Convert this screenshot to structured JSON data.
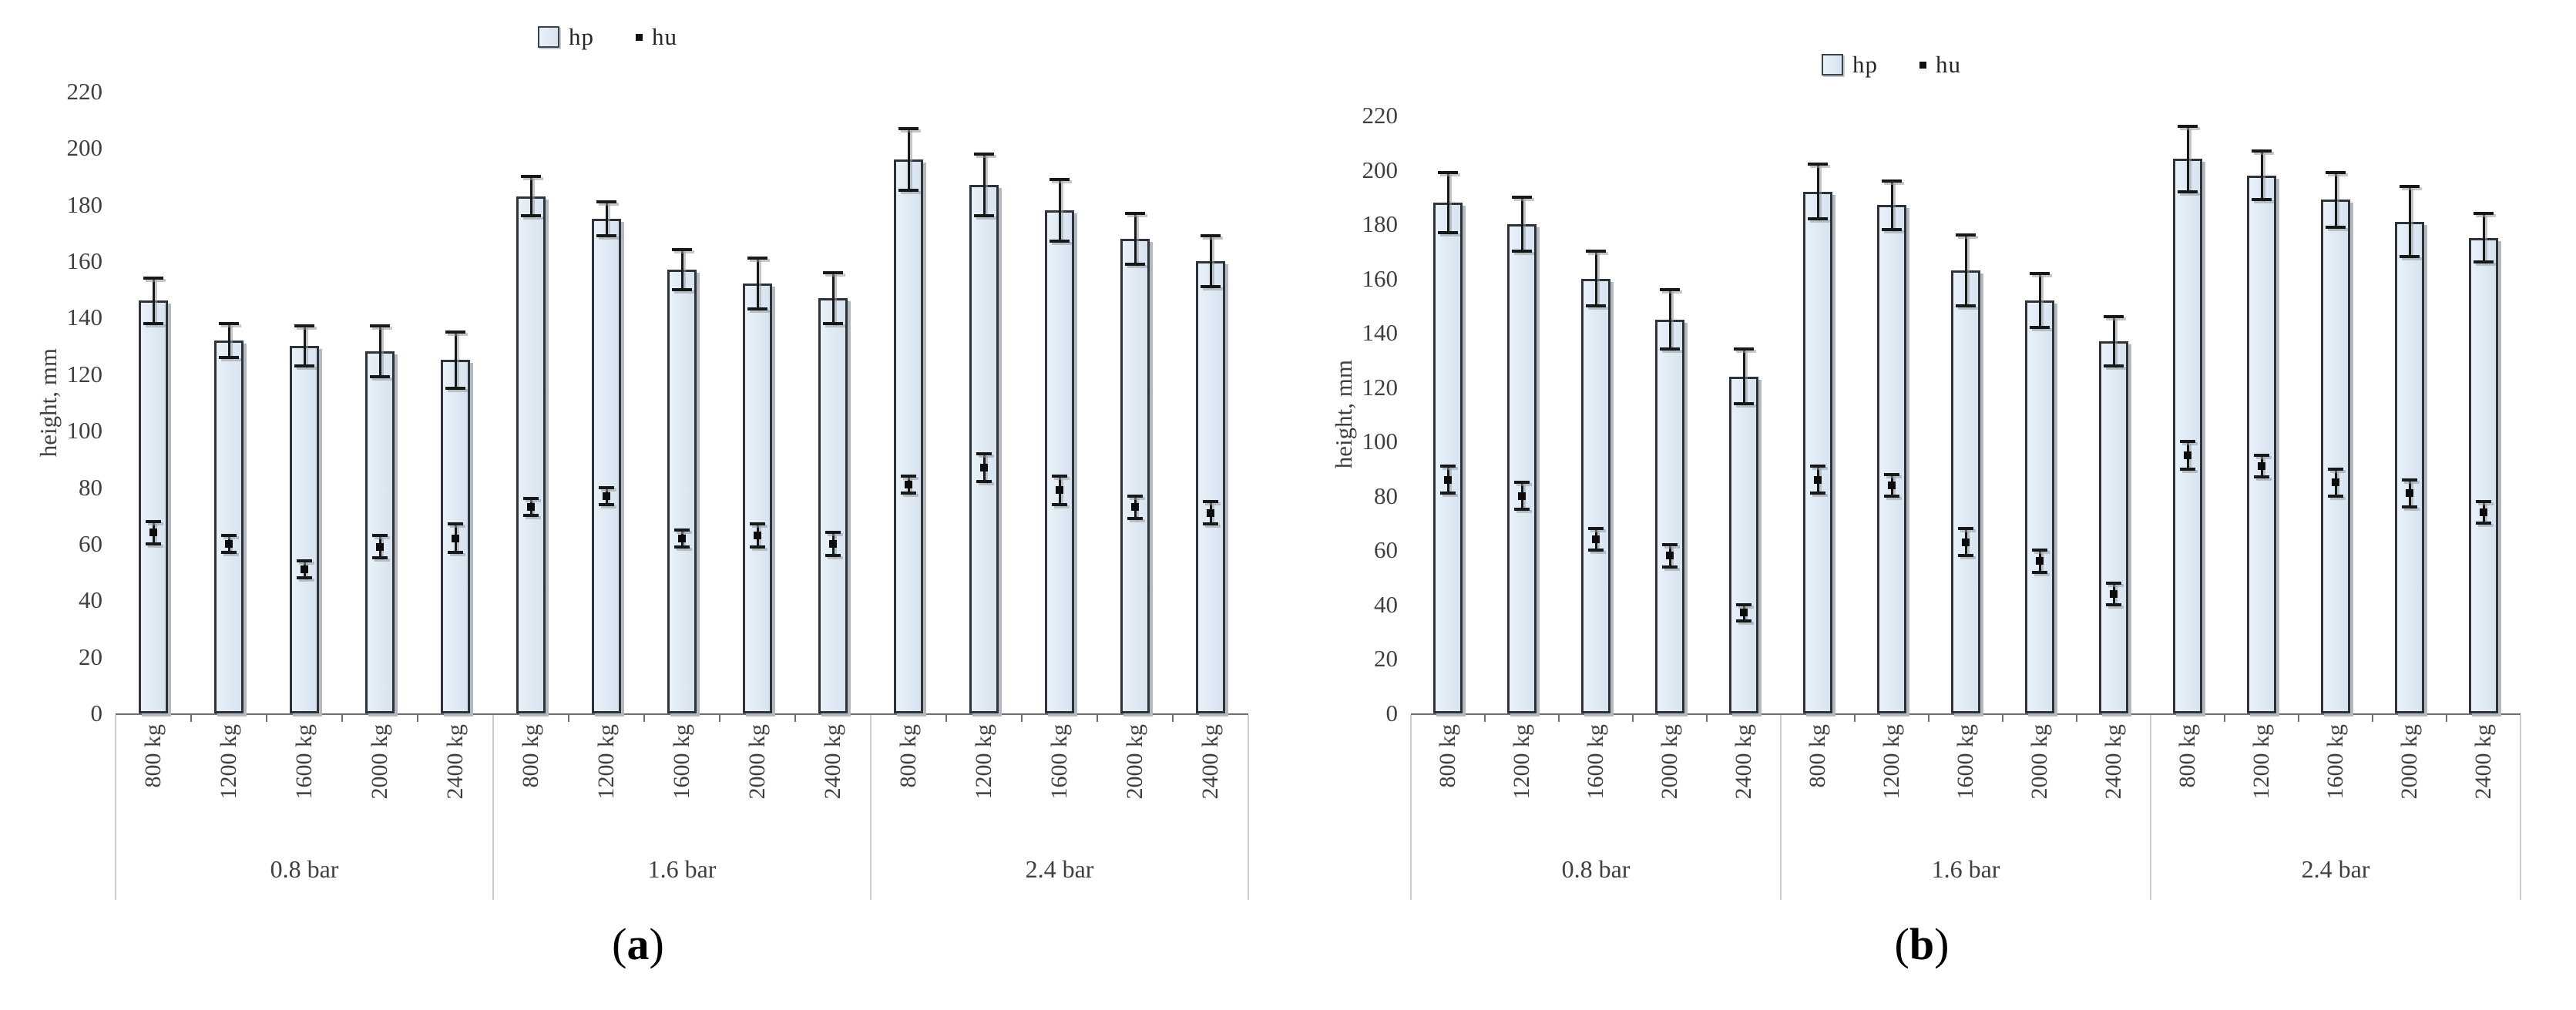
{
  "figure": {
    "background": "#ffffff",
    "style": {
      "bar_fill": "#dde8f3",
      "bar_border": "#2e333a",
      "bar_shadow": "#b3b9bf",
      "error_color": "#16181a",
      "marker_color": "#0d0d0d",
      "axis_text_color": "#3f3f3f",
      "axis_line_color": "#6e6e6e",
      "separator_color": "#cccccc"
    }
  },
  "chart_data": [
    {
      "type": "bar",
      "panel": "a",
      "caption": "(a)",
      "caption_open": "(",
      "caption_letter": "a",
      "caption_close": ")",
      "ylabel": "height, mm",
      "ylim": [
        0,
        220
      ],
      "ytick_step": 20,
      "yticks": [
        0,
        20,
        40,
        60,
        80,
        100,
        120,
        140,
        160,
        180,
        200,
        220
      ],
      "grid": false,
      "legend_position": "top-center",
      "groups": [
        "0.8 bar",
        "1.6 bar",
        "2.4 bar"
      ],
      "categories": [
        "800 kg",
        "1200 kg",
        "1600 kg",
        "2000 kg",
        "2400 kg"
      ],
      "series": [
        {
          "name": "hp",
          "marker": "bar",
          "values": [
            [
              146,
              132,
              130,
              128,
              125
            ],
            [
              183,
              175,
              157,
              152,
              147
            ],
            [
              196,
              187,
              178,
              168,
              160
            ]
          ],
          "errors": [
            [
              8,
              6,
              7,
              9,
              10
            ],
            [
              7,
              6,
              7,
              9,
              9
            ],
            [
              11,
              11,
              11,
              9,
              9
            ]
          ]
        },
        {
          "name": "hu",
          "marker": "point",
          "values": [
            [
              64,
              60,
              51,
              59,
              62
            ],
            [
              73,
              77,
              62,
              63,
              60
            ],
            [
              81,
              87,
              79,
              73,
              71
            ]
          ],
          "errors": [
            [
              4,
              3,
              3,
              4,
              5
            ],
            [
              3,
              3,
              3,
              4,
              4
            ],
            [
              3,
              5,
              5,
              4,
              4
            ]
          ]
        }
      ]
    },
    {
      "type": "bar",
      "panel": "b",
      "caption": "(b)",
      "caption_open": "(",
      "caption_letter": "b",
      "caption_close": ")",
      "ylabel": "height, mm",
      "ylim": [
        0,
        220
      ],
      "ytick_step": 20,
      "yticks": [
        0,
        20,
        40,
        60,
        80,
        100,
        120,
        140,
        160,
        180,
        200,
        220
      ],
      "grid": false,
      "legend_position": "top-center",
      "groups": [
        "0.8 bar",
        "1.6 bar",
        "2.4 bar"
      ],
      "categories": [
        "800 kg",
        "1200 kg",
        "1600 kg",
        "2000 kg",
        "2400 kg"
      ],
      "series": [
        {
          "name": "hp",
          "marker": "bar",
          "values": [
            [
              188,
              180,
              160,
              145,
              124
            ],
            [
              192,
              187,
              163,
              152,
              137
            ],
            [
              204,
              198,
              189,
              181,
              175
            ]
          ],
          "errors": [
            [
              11,
              10,
              10,
              11,
              10
            ],
            [
              10,
              9,
              13,
              10,
              9
            ],
            [
              12,
              9,
              10,
              13,
              9
            ]
          ]
        },
        {
          "name": "hu",
          "marker": "point",
          "values": [
            [
              86,
              80,
              64,
              58,
              37
            ],
            [
              86,
              84,
              63,
              56,
              44
            ],
            [
              95,
              91,
              85,
              81,
              74
            ]
          ],
          "errors": [
            [
              5,
              5,
              4,
              4,
              3
            ],
            [
              5,
              4,
              5,
              4,
              4
            ],
            [
              5,
              4,
              5,
              5,
              4
            ]
          ]
        }
      ]
    }
  ]
}
